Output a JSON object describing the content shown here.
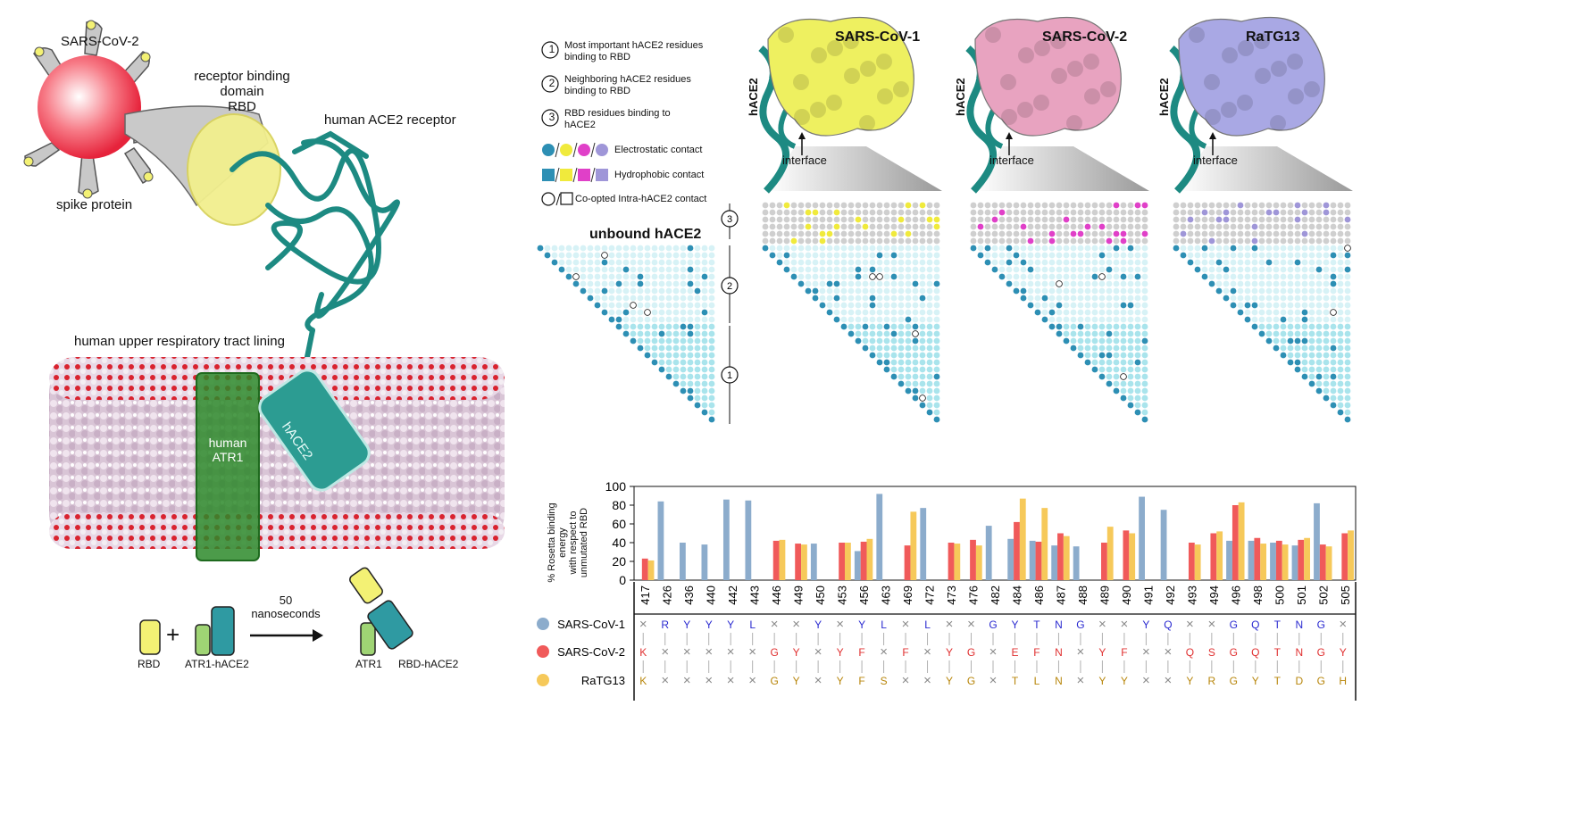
{
  "illustration": {
    "virus_label": "SARS-CoV-2",
    "rbd_label_1": "receptor binding domain",
    "rbd_label_2": "RBD",
    "spike_label": "spike protein",
    "receptor_label": "human ACE2 receptor",
    "lining_label": "human upper respiratory tract lining",
    "atr1_label_1": "human",
    "atr1_label_2": "ATR1",
    "hace2_label": "hACE2",
    "scheme": {
      "rbd": "RBD",
      "plus": "+",
      "complex": "ATR1-hACE2",
      "time_1": "50",
      "time_2": "nanoseconds",
      "product_left": "ATR1",
      "product_right": "RBD-hACE2"
    }
  },
  "legend": {
    "item1_num": "1",
    "item1_line1": "Most important hACE2 residues",
    "item1_line2": "binding to RBD",
    "item2_num": "2",
    "item2_line1": "Neighboring hACE2 residues",
    "item2_line2": "binding to RBD",
    "item3_num": "3",
    "item3_line1": "RBD residues binding to",
    "item3_line2": "hACE2",
    "electrostatic": "Electrostatic contact",
    "hydrophobic": "Hydrophobic contact",
    "coopted": "Co-opted Intra-hACE2 contact",
    "colors": {
      "sars1": "#f0ea3c",
      "sars2": "#e040c8",
      "ratg13": "#9f96d8",
      "hace2": "#2d8fb4"
    }
  },
  "structures": {
    "panels": [
      {
        "title": "SARS-CoV-1",
        "side_label": "hACE2",
        "interface_label": "interface",
        "surface_color": "#eef060"
      },
      {
        "title": "SARS-CoV-2",
        "side_label": "hACE2",
        "interface_label": "interface",
        "surface_color": "#e8a3c0"
      },
      {
        "title": "RaTG13",
        "side_label": "hACE2",
        "interface_label": "interface",
        "surface_color": "#a9a8e4"
      }
    ]
  },
  "contact_maps": {
    "unbound_title": "unbound hACE2",
    "region_labels": [
      "3",
      "2",
      "1"
    ]
  },
  "chart_data": {
    "type": "bar",
    "ylabel_lines": [
      "% Rosetta binding energy",
      "with respect to",
      "unmutated RBD"
    ],
    "ylim": [
      0,
      100
    ],
    "yticks": [
      0,
      20,
      40,
      60,
      80,
      100
    ],
    "grid": false,
    "categories": [
      "417",
      "426",
      "436",
      "440",
      "442",
      "443",
      "446",
      "449",
      "450",
      "453",
      "456",
      "463",
      "469",
      "472",
      "473",
      "476",
      "482",
      "484",
      "486",
      "487",
      "488",
      "489",
      "490",
      "491",
      "492",
      "493",
      "494",
      "496",
      "498",
      "500",
      "501",
      "502",
      "505"
    ],
    "series": [
      {
        "name": "SARS-CoV-1",
        "color": "#8caccc",
        "values": [
          null,
          84,
          40,
          38,
          86,
          85,
          null,
          null,
          39,
          null,
          31,
          92,
          null,
          77,
          null,
          null,
          58,
          44,
          42,
          37,
          36,
          null,
          null,
          89,
          75,
          null,
          null,
          42,
          42,
          40,
          37,
          82,
          null
        ]
      },
      {
        "name": "SARS-CoV-2",
        "color": "#f05a5a",
        "values": [
          23,
          null,
          null,
          null,
          null,
          null,
          42,
          39,
          null,
          40,
          41,
          null,
          37,
          null,
          40,
          43,
          null,
          62,
          41,
          50,
          null,
          40,
          53,
          null,
          null,
          40,
          50,
          80,
          45,
          42,
          43,
          38,
          50
        ]
      },
      {
        "name": "RaTG13",
        "color": "#f6c95a",
        "values": [
          21,
          null,
          null,
          null,
          null,
          null,
          43,
          38,
          null,
          40,
          44,
          null,
          73,
          null,
          39,
          37,
          null,
          87,
          77,
          47,
          null,
          57,
          50,
          null,
          null,
          38,
          52,
          83,
          39,
          38,
          45,
          36,
          53
        ]
      }
    ]
  },
  "alignment": {
    "rows": [
      {
        "name": "SARS-CoV-1",
        "color": "#8caccc",
        "text_color": "#2a2ad0",
        "residues": [
          "×",
          "R",
          "Y",
          "Y",
          "Y",
          "L",
          "×",
          "×",
          "Y",
          "×",
          "Y",
          "L",
          "×",
          "L",
          "×",
          "×",
          "G",
          "Y",
          "T",
          "N",
          "G",
          "×",
          "×",
          "Y",
          "Q",
          "×",
          "×",
          "G",
          "Q",
          "T",
          "N",
          "G",
          "×"
        ]
      },
      {
        "name": "SARS-CoV-2",
        "color": "#f05a5a",
        "text_color": "#e03030",
        "residues": [
          "K",
          "×",
          "×",
          "×",
          "×",
          "×",
          "G",
          "Y",
          "×",
          "Y",
          "F",
          "×",
          "F",
          "×",
          "Y",
          "G",
          "×",
          "E",
          "F",
          "N",
          "×",
          "Y",
          "F",
          "×",
          "×",
          "Q",
          "S",
          "G",
          "Q",
          "T",
          "N",
          "G",
          "Y"
        ]
      },
      {
        "name": "RaTG13",
        "color": "#f6c95a",
        "text_color": "#b8860b",
        "residues": [
          "K",
          "×",
          "×",
          "×",
          "×",
          "×",
          "G",
          "Y",
          "×",
          "Y",
          "F",
          "S",
          "×",
          "×",
          "Y",
          "G",
          "×",
          "T",
          "L",
          "N",
          "×",
          "Y",
          "Y",
          "×",
          "×",
          "Y",
          "R",
          "G",
          "Y",
          "T",
          "D",
          "G",
          "H"
        ]
      }
    ]
  }
}
